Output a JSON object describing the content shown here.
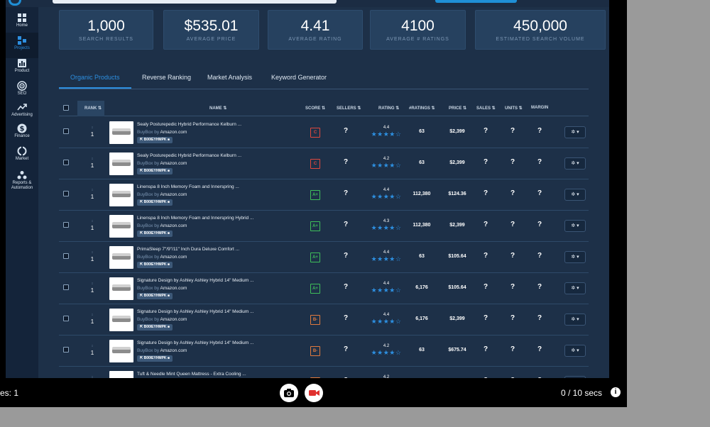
{
  "sidebar": {
    "items": [
      {
        "label": "Home",
        "icon": "home-grid-icon"
      },
      {
        "label": "Projects",
        "icon": "projects-icon",
        "active": true
      },
      {
        "label": "Product",
        "icon": "product-chart-icon"
      },
      {
        "label": "SEO",
        "icon": "target-icon"
      },
      {
        "label": "Advertising",
        "icon": "trend-arrow-icon"
      },
      {
        "label": "Finance",
        "icon": "dollar-icon"
      },
      {
        "label": "Market",
        "icon": "market-ring-icon"
      },
      {
        "label": "Reports & Automation",
        "icon": "reports-triangle-icon"
      }
    ]
  },
  "stats": [
    {
      "value": "1,000",
      "label": "SEARCH RESULTS"
    },
    {
      "value": "$535.01",
      "label": "AVERAGE PRICE"
    },
    {
      "value": "4.41",
      "label": "AVERAGE RATING"
    },
    {
      "value": "4100",
      "label": "AVERAGE # RATINGS"
    },
    {
      "value": "450,000",
      "label": "ESTIMATED SEARCH VOLUME"
    }
  ],
  "tabs": [
    {
      "label": "Organic Products",
      "active": true
    },
    {
      "label": "Reverse Ranking"
    },
    {
      "label": "Market Analysis"
    },
    {
      "label": "Keyword Generator"
    }
  ],
  "table": {
    "headers": {
      "rank": "RANK ⇅",
      "name": "NAME ⇅",
      "score": "SCORE ⇅",
      "sellers": "SELLERS ⇅",
      "rating": "RATING ⇅",
      "num_ratings": "#RATINGS ⇅",
      "price": "PRICE ⇅",
      "sales": "SALES ⇅",
      "units": "UNITS ⇅",
      "margin": "MARGIN"
    },
    "buybox_prefix": "BuyBox by",
    "rows": [
      {
        "rank": "1",
        "name": "Sealy Posturepedic Hybrid Performance Kelburn ...",
        "buybox": "Amazon.com",
        "asin": "B00IEYHMPK",
        "score": "C",
        "score_color": "#e0483e",
        "sellers": "?",
        "rating": "4.4",
        "stars": "★★★★☆",
        "num_ratings": "63",
        "price": "$2,399",
        "sales": "?",
        "units": "?",
        "margin": "?"
      },
      {
        "rank": "1",
        "name": "Sealy Posturepedic Hybrid Performance Kelburn ...",
        "buybox": "Amazon.com",
        "asin": "B00IEYHMPK",
        "score": "C",
        "score_color": "#e0483e",
        "sellers": "?",
        "rating": "4.2",
        "stars": "★★★★☆",
        "num_ratings": "63",
        "price": "$2,399",
        "sales": "?",
        "units": "?",
        "margin": "?"
      },
      {
        "rank": "1",
        "name": "Linenspa 8 Inch Memory Foam and Innerspring ...",
        "buybox": "Amazon.com",
        "asin": "B00IEYHMPK",
        "score": "A+",
        "score_color": "#3fbf5a",
        "sellers": "?",
        "rating": "4.4",
        "stars": "★★★★☆",
        "num_ratings": "112,380",
        "price": "$124.36",
        "sales": "?",
        "units": "?",
        "margin": "?"
      },
      {
        "rank": "1",
        "name": "Linenspa 8 Inch Memory Foam and Innerspring Hybrid ...",
        "buybox": "Amazon.com",
        "asin": "B00IEYHMPK",
        "score": "A+",
        "score_color": "#3fbf5a",
        "sellers": "?",
        "rating": "4.3",
        "stars": "★★★★☆",
        "num_ratings": "112,380",
        "price": "$2,399",
        "sales": "?",
        "units": "?",
        "margin": "?"
      },
      {
        "rank": "1",
        "name": "PrimaSleep 7\"/9\"/11\" Inch Dura Deluxe Comfort ...",
        "buybox": "Amazon.com",
        "asin": "B00IEYHMPK",
        "score": "A+",
        "score_color": "#3fbf5a",
        "sellers": "?",
        "rating": "4.4",
        "stars": "★★★★☆",
        "num_ratings": "63",
        "price": "$105.64",
        "sales": "?",
        "units": "?",
        "margin": "?"
      },
      {
        "rank": "1",
        "name": "Signature Design by Ashley Ashley Hybrid 14\" Medium ...",
        "buybox": "Amazon.com",
        "asin": "B00IEYHMPK",
        "score": "A+",
        "score_color": "#3fbf5a",
        "sellers": "?",
        "rating": "4.4",
        "stars": "★★★★☆",
        "num_ratings": "6,176",
        "price": "$105.64",
        "sales": "?",
        "units": "?",
        "margin": "?"
      },
      {
        "rank": "1",
        "name": "Signature Design by Ashley Ashley Hybrid 14\" Medium ...",
        "buybox": "Amazon.com",
        "asin": "B00IEYHMPK",
        "score": "B-",
        "score_color": "#e07a3e",
        "sellers": "?",
        "rating": "4.4",
        "stars": "★★★★☆",
        "num_ratings": "6,176",
        "price": "$2,399",
        "sales": "?",
        "units": "?",
        "margin": "?"
      },
      {
        "rank": "1",
        "name": "Signature Design by Ashley Ashley Hybrid 14\" Medium ...",
        "buybox": "Amazon.com",
        "asin": "B00IEYHMPK",
        "score": "B-",
        "score_color": "#e07a3e",
        "sellers": "?",
        "rating": "4.2",
        "stars": "★★★★☆",
        "num_ratings": "63",
        "price": "$675.74",
        "sales": "?",
        "units": "?",
        "margin": "?"
      },
      {
        "rank": "1",
        "name": "Tuft & Needle Mint Queen Mattress - Extra Cooling ...",
        "buybox": "",
        "asin": "",
        "score": "B-",
        "score_color": "#e07a3e",
        "sellers": "?",
        "rating": "4.2",
        "stars": "★★★★☆",
        "num_ratings": "",
        "price": "",
        "sales": "?",
        "units": "?",
        "margin": "?"
      }
    ]
  },
  "bottombar": {
    "left_text": "es: 1",
    "timer": "0 / 10 secs",
    "camera_icon": "camera-icon",
    "record_icon": "video-record-icon",
    "info_icon": "info-icon"
  },
  "colors": {
    "app_bg": "#1d3048",
    "sidebar_bg": "#14243a",
    "accent": "#2d8fe0",
    "record_red": "#e0312e"
  }
}
